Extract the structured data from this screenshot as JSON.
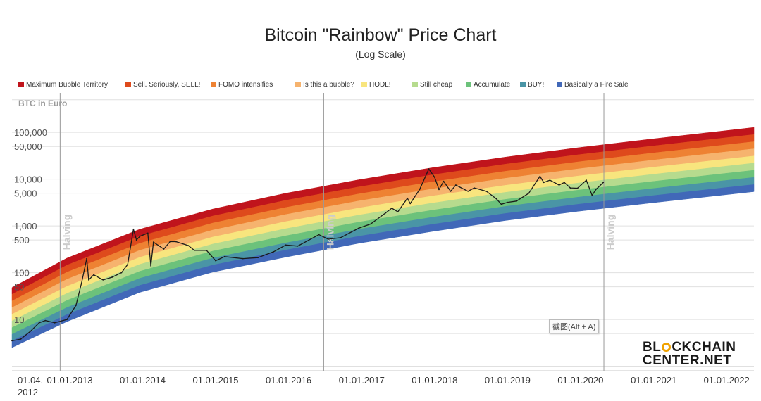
{
  "chart_data": {
    "type": "line",
    "title": "Bitcoin \"Rainbow\" Price Chart",
    "subtitle": "(Log Scale)",
    "ylabel": "BTC in Euro",
    "yscale": "log",
    "ylim": [
      0.8,
      700000
    ],
    "xlim": [
      "2012-04-01",
      "2022-06-01"
    ],
    "grid": true,
    "legend_position": "top",
    "y_tick_labels": [
      {
        "value": 100000,
        "label": "100,000"
      },
      {
        "value": 50000,
        "label": "50,000"
      },
      {
        "value": 10000,
        "label": "10,000"
      },
      {
        "value": 5000,
        "label": "5,000"
      },
      {
        "value": 1000,
        "label": "1,000"
      },
      {
        "value": 500,
        "label": "500"
      },
      {
        "value": 100,
        "label": "100"
      },
      {
        "value": 50,
        "label": "50"
      },
      {
        "value": 10,
        "label": "10"
      }
    ],
    "x_tick_labels": [
      {
        "date": "2012-04-01",
        "label": "01.04.\n2012"
      },
      {
        "date": "2013-01-01",
        "label": "01.01.2013"
      },
      {
        "date": "2014-01-01",
        "label": "01.01.2014"
      },
      {
        "date": "2015-01-01",
        "label": "01.01.2015"
      },
      {
        "date": "2016-01-01",
        "label": "01.01.2016"
      },
      {
        "date": "2017-01-01",
        "label": "01.01.2017"
      },
      {
        "date": "2018-01-01",
        "label": "01.01.2018"
      },
      {
        "date": "2019-01-01",
        "label": "01.01.2019"
      },
      {
        "date": "2020-01-01",
        "label": "01.01.2020"
      },
      {
        "date": "2021-01-01",
        "label": "01.01.2021"
      },
      {
        "date": "2022-01-01",
        "label": "01.01.2022"
      }
    ],
    "annotations": [
      {
        "date": "2012-11-28",
        "label": "Halving"
      },
      {
        "date": "2016-07-09",
        "label": "Halving"
      },
      {
        "date": "2020-05-11",
        "label": "Halving"
      }
    ],
    "bands": [
      {
        "name": "Maximum Bubble Territory",
        "color": "#c0141c"
      },
      {
        "name": "Sell. Seriously, SELL!",
        "color": "#de4a1c"
      },
      {
        "name": "FOMO intensifies",
        "color": "#ee8233"
      },
      {
        "name": "Is this a bubble?",
        "color": "#f6b36e"
      },
      {
        "name": "HODL!",
        "color": "#f8e57e"
      },
      {
        "name": "Still cheap",
        "color": "#b6db8e"
      },
      {
        "name": "Accumulate",
        "color": "#6cc27b"
      },
      {
        "name": "BUY!",
        "color": "#4a95a6"
      },
      {
        "name": "Basically a Fire Sale",
        "color": "#4168b8"
      }
    ],
    "band_edges": [
      {
        "date": "2012-04-01",
        "top": 48,
        "bottom": 2.5
      },
      {
        "date": "2013-01-01",
        "top": 205,
        "bottom": 9
      },
      {
        "date": "2014-01-01",
        "top": 850,
        "bottom": 38
      },
      {
        "date": "2015-01-01",
        "top": 2300,
        "bottom": 103
      },
      {
        "date": "2016-01-01",
        "top": 5000,
        "bottom": 215
      },
      {
        "date": "2017-01-01",
        "top": 9700,
        "bottom": 425
      },
      {
        "date": "2018-01-01",
        "top": 17500,
        "bottom": 760
      },
      {
        "date": "2019-01-01",
        "top": 29500,
        "bottom": 1300
      },
      {
        "date": "2020-01-01",
        "top": 47000,
        "bottom": 2050
      },
      {
        "date": "2021-01-01",
        "top": 72000,
        "bottom": 3100
      },
      {
        "date": "2022-01-01",
        "top": 108000,
        "bottom": 4600
      },
      {
        "date": "2022-06-01",
        "top": 128000,
        "bottom": 5400
      }
    ],
    "series": [
      {
        "color": "#1a1a1a",
        "points": [
          {
            "date": "2012-04-01",
            "value": 3.5
          },
          {
            "date": "2012-05-15",
            "value": 3.8
          },
          {
            "date": "2012-07-01",
            "value": 5.5
          },
          {
            "date": "2012-08-15",
            "value": 8.5
          },
          {
            "date": "2012-09-15",
            "value": 9.5
          },
          {
            "date": "2012-11-01",
            "value": 8.5
          },
          {
            "date": "2013-01-01",
            "value": 10
          },
          {
            "date": "2013-02-15",
            "value": 20
          },
          {
            "date": "2013-03-15",
            "value": 60
          },
          {
            "date": "2013-04-10",
            "value": 200
          },
          {
            "date": "2013-04-20",
            "value": 70
          },
          {
            "date": "2013-05-15",
            "value": 90
          },
          {
            "date": "2013-07-01",
            "value": 70
          },
          {
            "date": "2013-08-15",
            "value": 80
          },
          {
            "date": "2013-10-01",
            "value": 100
          },
          {
            "date": "2013-11-01",
            "value": 150
          },
          {
            "date": "2013-11-30",
            "value": 850
          },
          {
            "date": "2013-12-15",
            "value": 500
          },
          {
            "date": "2014-01-01",
            "value": 600
          },
          {
            "date": "2014-02-10",
            "value": 700
          },
          {
            "date": "2014-02-25",
            "value": 140
          },
          {
            "date": "2014-03-10",
            "value": 450
          },
          {
            "date": "2014-05-01",
            "value": 320
          },
          {
            "date": "2014-06-01",
            "value": 460
          },
          {
            "date": "2014-07-01",
            "value": 460
          },
          {
            "date": "2014-09-01",
            "value": 380
          },
          {
            "date": "2014-10-01",
            "value": 300
          },
          {
            "date": "2014-12-01",
            "value": 300
          },
          {
            "date": "2015-01-15",
            "value": 180
          },
          {
            "date": "2015-03-01",
            "value": 220
          },
          {
            "date": "2015-06-01",
            "value": 200
          },
          {
            "date": "2015-08-15",
            "value": 210
          },
          {
            "date": "2015-11-01",
            "value": 280
          },
          {
            "date": "2016-01-01",
            "value": 390
          },
          {
            "date": "2016-03-01",
            "value": 370
          },
          {
            "date": "2016-06-15",
            "value": 650
          },
          {
            "date": "2016-08-01",
            "value": 520
          },
          {
            "date": "2016-10-01",
            "value": 560
          },
          {
            "date": "2017-01-01",
            "value": 900
          },
          {
            "date": "2017-03-01",
            "value": 1100
          },
          {
            "date": "2017-05-15",
            "value": 1900
          },
          {
            "date": "2017-06-15",
            "value": 2400
          },
          {
            "date": "2017-07-15",
            "value": 2000
          },
          {
            "date": "2017-09-01",
            "value": 3900
          },
          {
            "date": "2017-09-15",
            "value": 3000
          },
          {
            "date": "2017-11-01",
            "value": 6000
          },
          {
            "date": "2017-12-17",
            "value": 16500
          },
          {
            "date": "2018-01-15",
            "value": 11000
          },
          {
            "date": "2018-02-06",
            "value": 6000
          },
          {
            "date": "2018-03-01",
            "value": 9000
          },
          {
            "date": "2018-04-05",
            "value": 5500
          },
          {
            "date": "2018-05-01",
            "value": 7500
          },
          {
            "date": "2018-07-01",
            "value": 5500
          },
          {
            "date": "2018-08-01",
            "value": 6500
          },
          {
            "date": "2018-10-01",
            "value": 5500
          },
          {
            "date": "2018-11-20",
            "value": 3800
          },
          {
            "date": "2018-12-15",
            "value": 2900
          },
          {
            "date": "2019-01-15",
            "value": 3200
          },
          {
            "date": "2019-03-01",
            "value": 3400
          },
          {
            "date": "2019-05-01",
            "value": 5000
          },
          {
            "date": "2019-06-26",
            "value": 11500
          },
          {
            "date": "2019-07-15",
            "value": 8500
          },
          {
            "date": "2019-08-15",
            "value": 9500
          },
          {
            "date": "2019-09-30",
            "value": 7500
          },
          {
            "date": "2019-10-26",
            "value": 8500
          },
          {
            "date": "2019-11-25",
            "value": 6500
          },
          {
            "date": "2019-12-31",
            "value": 6400
          },
          {
            "date": "2020-02-13",
            "value": 9500
          },
          {
            "date": "2020-03-13",
            "value": 4500
          },
          {
            "date": "2020-04-01",
            "value": 6000
          },
          {
            "date": "2020-05-08",
            "value": 8500
          }
        ]
      }
    ]
  },
  "watermark": {
    "part1": "BL",
    "part2": "CKCHAIN",
    "line2": "CENTER.NET"
  },
  "tooltip": {
    "text": "截图(Alt + A)"
  }
}
